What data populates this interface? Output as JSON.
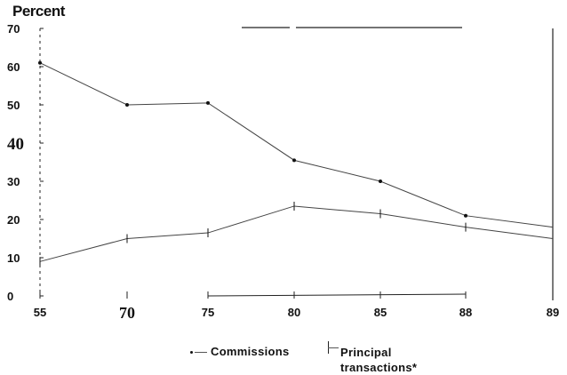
{
  "chart_data": {
    "type": "line",
    "title": "",
    "ylabel": "Percent",
    "xlabel": "",
    "x": [
      55,
      70,
      75,
      80,
      85,
      88,
      89
    ],
    "x_tick_labels": [
      "55",
      "70",
      "75",
      "80",
      "85",
      "88",
      "89"
    ],
    "ylim": [
      0,
      70
    ],
    "y_ticks": [
      0,
      10,
      20,
      30,
      40,
      50,
      60,
      70
    ],
    "y_tick_labels": [
      "0",
      "10",
      "20",
      "30",
      "40",
      "50",
      "60",
      "70"
    ],
    "grid": false,
    "legend_position": "bottom",
    "series": [
      {
        "name": "Commissions",
        "marker": "dot",
        "values": [
          61,
          50,
          50.5,
          35.5,
          30,
          21,
          18
        ]
      },
      {
        "name": "Principal transactions*",
        "marker": "cross",
        "values": [
          9,
          15,
          16.5,
          23.5,
          21.5,
          18,
          15
        ]
      }
    ]
  },
  "legend": {
    "commissions": "Commissions",
    "principal_line1": "Principal",
    "principal_line2": "transactions*"
  },
  "colors": {
    "line": "#444444",
    "axis": "#222222"
  }
}
